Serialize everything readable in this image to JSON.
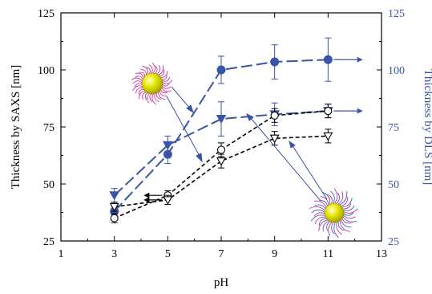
{
  "chart_data": {
    "type": "line",
    "xlabel": "pH",
    "ylabel_left": "Thickness by SAXS [nm]",
    "ylabel_right": "Thickness by DLS [nm]",
    "xlim": [
      1,
      13
    ],
    "ylim": [
      25,
      125
    ],
    "xticks": [
      1,
      3,
      5,
      7,
      9,
      11,
      13
    ],
    "yticks": [
      25,
      50,
      75,
      100,
      125
    ],
    "colors": {
      "saxs": "#000000",
      "dls": "#3a55a6",
      "particle_core": "#e6e600",
      "shell_a": "#cc3399",
      "shell_b": "#3366cc"
    },
    "series": [
      {
        "axis": "right",
        "kind": "dls-circles",
        "marker": "circle-filled",
        "style": "long-dash",
        "x": [
          3,
          5,
          7,
          9,
          11
        ],
        "y": [
          38,
          63,
          100,
          103.5,
          104.5
        ],
        "err": [
          1.5,
          4,
          6,
          7.5,
          9.5
        ],
        "arrow": "right"
      },
      {
        "axis": "right",
        "kind": "dls-triangles",
        "marker": "triangle-down-filled",
        "style": "long-dash",
        "x": [
          3,
          5,
          7,
          9,
          11
        ],
        "y": [
          45,
          67,
          78.5,
          80.5,
          82
        ],
        "err": [
          3,
          4,
          7.5,
          5,
          3
        ],
        "arrow": "right"
      },
      {
        "axis": "left",
        "kind": "saxs-circles",
        "marker": "circle-open",
        "style": "short-dash",
        "x": [
          3,
          5,
          7,
          9,
          11
        ],
        "y": [
          35,
          45,
          65,
          80,
          82
        ],
        "err": [
          2,
          2,
          3,
          3,
          3
        ],
        "arrow": "left"
      },
      {
        "axis": "left",
        "kind": "saxs-triangles",
        "marker": "triangle-down-open",
        "style": "short-dash",
        "x": [
          3,
          5,
          7,
          9,
          11
        ],
        "y": [
          40,
          43,
          60,
          70,
          71
        ],
        "err": [
          2,
          2,
          3,
          3,
          3
        ],
        "arrow": "left"
      }
    ]
  }
}
